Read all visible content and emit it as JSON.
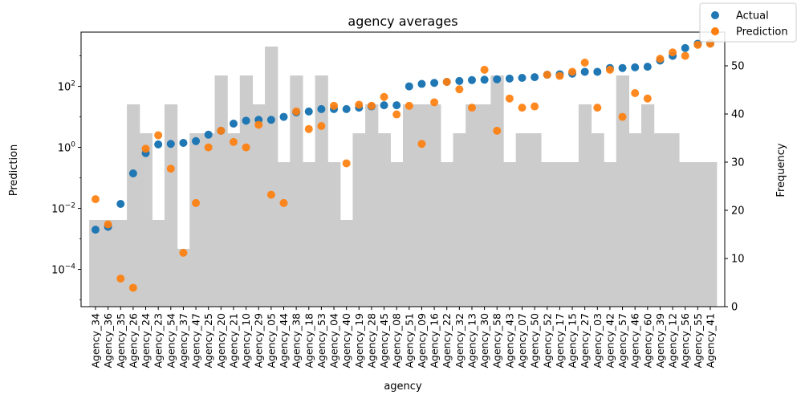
{
  "chart_data": {
    "type": "scatter",
    "title": "agency averages",
    "xlabel": "agency",
    "ylabel_left": "Prediction",
    "ylabel_right": "Frequency",
    "yscale_left": "log",
    "ylim_left": [
      6e-06,
      6000
    ],
    "ylim_right": [
      0,
      57
    ],
    "yticks_left": [
      {
        "value": 0.0001,
        "base": "10",
        "exp": "−4"
      },
      {
        "value": 0.01,
        "base": "10",
        "exp": "−2"
      },
      {
        "value": 1,
        "base": "10",
        "exp": "0"
      },
      {
        "value": 100,
        "base": "10",
        "exp": "2"
      }
    ],
    "yticks_right": [
      0,
      10,
      20,
      30,
      40,
      50
    ],
    "legend_position": "top-right",
    "colors": {
      "actual": "#1f77b4",
      "prediction": "#ff7f0e",
      "frequency": "#cccccc"
    },
    "categories": [
      "Agency_34",
      "Agency_36",
      "Agency_35",
      "Agency_26",
      "Agency_24",
      "Agency_23",
      "Agency_54",
      "Agency_37",
      "Agency_47",
      "Agency_25",
      "Agency_20",
      "Agency_21",
      "Agency_10",
      "Agency_29",
      "Agency_05",
      "Agency_44",
      "Agency_38",
      "Agency_18",
      "Agency_53",
      "Agency_04",
      "Agency_40",
      "Agency_19",
      "Agency_28",
      "Agency_45",
      "Agency_08",
      "Agency_51",
      "Agency_09",
      "Agency_16",
      "Agency_22",
      "Agency_32",
      "Agency_13",
      "Agency_30",
      "Agency_58",
      "Agency_43",
      "Agency_07",
      "Agency_50",
      "Agency_52",
      "Agency_17",
      "Agency_15",
      "Agency_27",
      "Agency_03",
      "Agency_42",
      "Agency_57",
      "Agency_46",
      "Agency_60",
      "Agency_39",
      "Agency_12",
      "Agency_56",
      "Agency_55",
      "Agency_41"
    ],
    "series": [
      {
        "name": "Actual",
        "kind": "scatter",
        "axis": "left",
        "values": [
          0.002,
          0.0025,
          0.014,
          0.14,
          0.65,
          1.25,
          1.3,
          1.4,
          1.6,
          2.6,
          3.5,
          6,
          7.5,
          8,
          8,
          10,
          14,
          15,
          18,
          18,
          18,
          20,
          22,
          24,
          24,
          100,
          120,
          130,
          140,
          150,
          160,
          165,
          170,
          180,
          190,
          200,
          240,
          250,
          260,
          300,
          300,
          400,
          400,
          420,
          440,
          700,
          1000,
          1800,
          2500,
          2600
        ]
      },
      {
        "name": "Prediction",
        "kind": "scatter",
        "axis": "left",
        "values": [
          0.02,
          0.003,
          5e-05,
          2.5e-05,
          0.9,
          2.5,
          0.2,
          0.00035,
          0.015,
          1.0,
          3.5,
          1.5,
          1.0,
          5.5,
          0.028,
          0.015,
          15,
          4,
          5,
          23,
          0.3,
          25,
          23,
          45,
          12,
          23,
          1.3,
          30,
          140,
          80,
          20,
          350,
          3.5,
          40,
          20,
          22,
          240,
          220,
          300,
          600,
          20,
          350,
          10,
          60,
          40,
          800,
          1300,
          1000,
          2300,
          2500
        ]
      },
      {
        "name": "Frequency",
        "kind": "bar",
        "axis": "right",
        "values": [
          18,
          18,
          18,
          42,
          36,
          18,
          42,
          12,
          36,
          36,
          48,
          36,
          48,
          42,
          54,
          30,
          48,
          30,
          48,
          30,
          18,
          36,
          42,
          36,
          30,
          42,
          42,
          42,
          30,
          36,
          42,
          42,
          48,
          30,
          36,
          36,
          30,
          30,
          30,
          42,
          36,
          30,
          48,
          36,
          42,
          36,
          36,
          30,
          30,
          30
        ]
      }
    ]
  }
}
